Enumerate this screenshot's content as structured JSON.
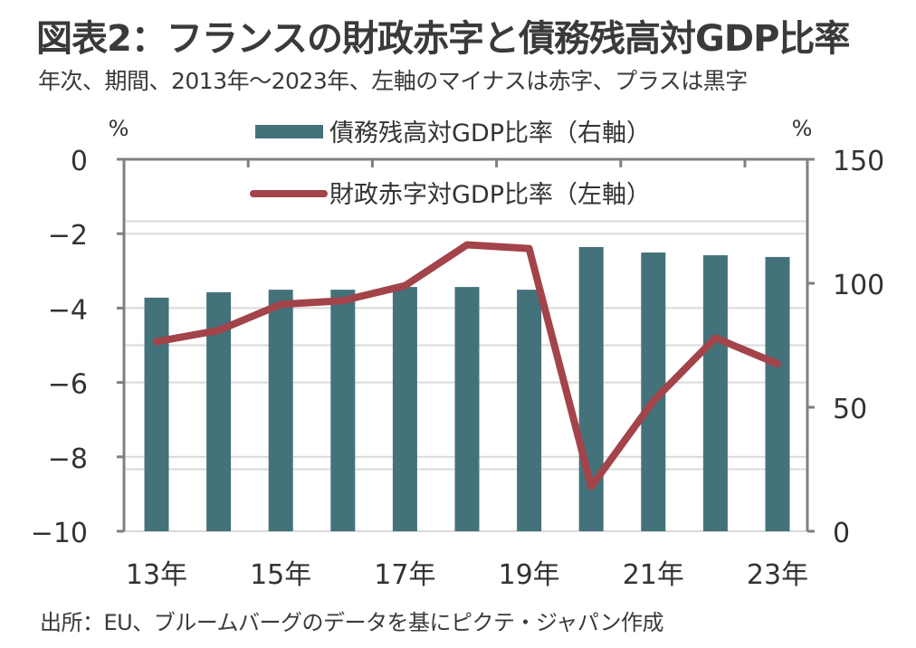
{
  "title": "図表2：フランスの財政赤字と債務残高対GDP比率",
  "subtitle": "年次、期間、2013年～2023年、左軸のマイナスは赤字、プラスは黒字",
  "source": "出所：EU、ブルームバーグのデータを基にピクテ・ジャパン作成",
  "colors": {
    "bar": "#44727a",
    "line": "#a3434a",
    "axis": "#808080",
    "grid": "#d9d9d9"
  },
  "chart_data": {
    "type": "bar+line",
    "title": "図表2：フランスの財政赤字と債務残高対GDP比率",
    "categories": [
      "2013",
      "2014",
      "2015",
      "2016",
      "2017",
      "2018",
      "2019",
      "2020",
      "2021",
      "2022",
      "2023"
    ],
    "x_tick_labels": [
      "13年",
      "15年",
      "17年",
      "19年",
      "21年",
      "23年"
    ],
    "series": [
      {
        "name": "債務残高対GDP比率（右軸）",
        "type": "bar",
        "axis": "right",
        "values": [
          94.2,
          96.4,
          97.4,
          97.4,
          98.5,
          98.5,
          97.4,
          114.6,
          112.4,
          111.3,
          110.6
        ]
      },
      {
        "name": "財政赤字対GDP比率（左軸）",
        "type": "line",
        "axis": "left",
        "values": [
          -4.9,
          -4.6,
          -3.9,
          -3.8,
          -3.4,
          -2.3,
          -2.4,
          -8.8,
          -6.5,
          -4.8,
          -5.5
        ]
      }
    ],
    "left_axis": {
      "unit": "%",
      "ylim": [
        -10,
        0
      ],
      "ticks": [
        0,
        -2,
        -4,
        -6,
        -8,
        -10
      ],
      "tick_labels": [
        "0",
        "-2",
        "-4",
        "-6",
        "-8",
        "-10"
      ]
    },
    "right_axis": {
      "unit": "%",
      "ylim": [
        0,
        150
      ],
      "ticks": [
        150,
        100,
        50,
        0
      ],
      "tick_labels": [
        "150",
        "100",
        "50",
        "0"
      ]
    },
    "grid": true,
    "legend": "top-center"
  }
}
